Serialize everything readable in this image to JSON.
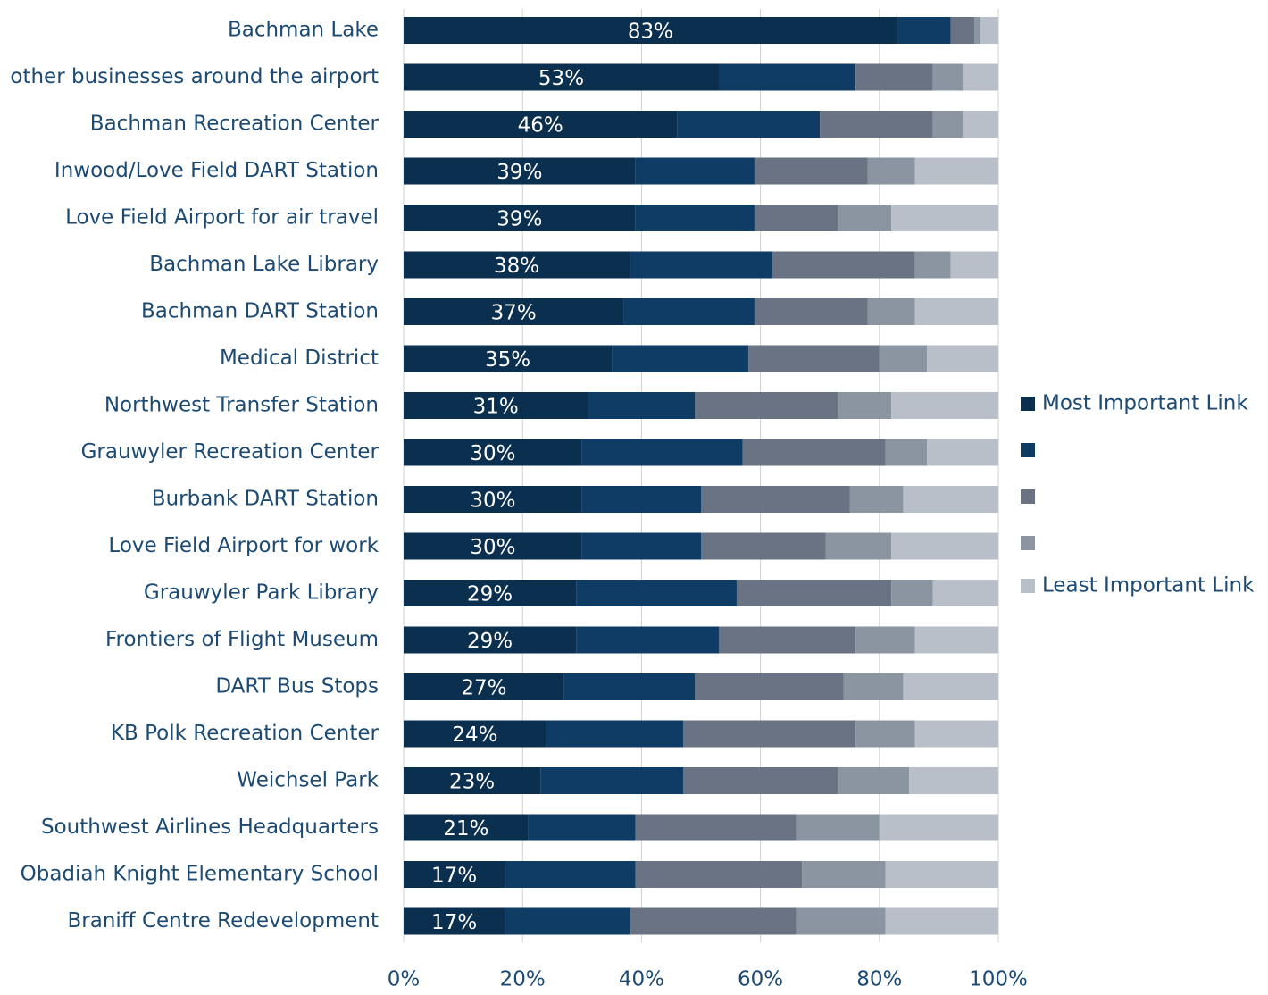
{
  "chart_data": {
    "type": "stacked-barh",
    "categories": [
      "Bachman Lake",
      "other businesses around the airport",
      "Bachman Recreation Center",
      "Inwood/Love Field DART Station",
      "Love Field Airport for air travel",
      "Bachman Lake Library",
      "Bachman DART Station",
      "Medical District",
      "Northwest Transfer Station",
      "Grauwyler Recreation Center",
      "Burbank DART Station",
      "Love Field Airport for work",
      "Grauwyler Park Library",
      "Frontiers of Flight Museum",
      "DART Bus Stops",
      "KB Polk Recreation Center",
      "Weichsel Park",
      "Southwest Airlines Headquarters",
      "Obadiah Knight Elementary School",
      "Braniff Centre Redevelopment"
    ],
    "series": [
      {
        "name": "Most Important Link",
        "color": "#0b2f4e",
        "values": [
          83,
          53,
          46,
          39,
          39,
          38,
          37,
          35,
          31,
          30,
          30,
          30,
          29,
          29,
          27,
          24,
          23,
          21,
          17,
          17
        ],
        "value_labels": [
          "83%",
          "53%",
          "46%",
          "39%",
          "39%",
          "38%",
          "37%",
          "35%",
          "31%",
          "30%",
          "30%",
          "30%",
          "29%",
          "29%",
          "27%",
          "24%",
          "23%",
          "21%",
          "17%",
          "17%"
        ]
      },
      {
        "color": "#0f3c64",
        "values": [
          9,
          23,
          24,
          20,
          20,
          24,
          22,
          23,
          18,
          27,
          20,
          20,
          27,
          24,
          22,
          23,
          24,
          18,
          22,
          21
        ]
      },
      {
        "color": "#697383",
        "values": [
          4,
          13,
          19,
          19,
          14,
          24,
          19,
          22,
          24,
          24,
          25,
          21,
          26,
          23,
          25,
          29,
          26,
          27,
          28,
          28
        ]
      },
      {
        "color": "#8b95a1",
        "values": [
          1,
          5,
          5,
          8,
          9,
          6,
          8,
          8,
          9,
          7,
          9,
          11,
          7,
          10,
          10,
          10,
          12,
          14,
          14,
          15
        ]
      },
      {
        "name": "Least Important Link",
        "color": "#b9bfc9",
        "values": [
          3,
          6,
          6,
          14,
          18,
          8,
          14,
          12,
          18,
          12,
          16,
          18,
          11,
          14,
          16,
          14,
          15,
          20,
          19,
          19
        ]
      }
    ],
    "xlim": [
      0,
      100
    ],
    "xticks": [
      {
        "value": 0,
        "label": "0%"
      },
      {
        "value": 20,
        "label": "20%"
      },
      {
        "value": 40,
        "label": "40%"
      },
      {
        "value": 60,
        "label": "60%"
      },
      {
        "value": 80,
        "label": "80%"
      },
      {
        "value": 100,
        "label": "100%"
      }
    ],
    "grid": true,
    "legend": "right"
  }
}
